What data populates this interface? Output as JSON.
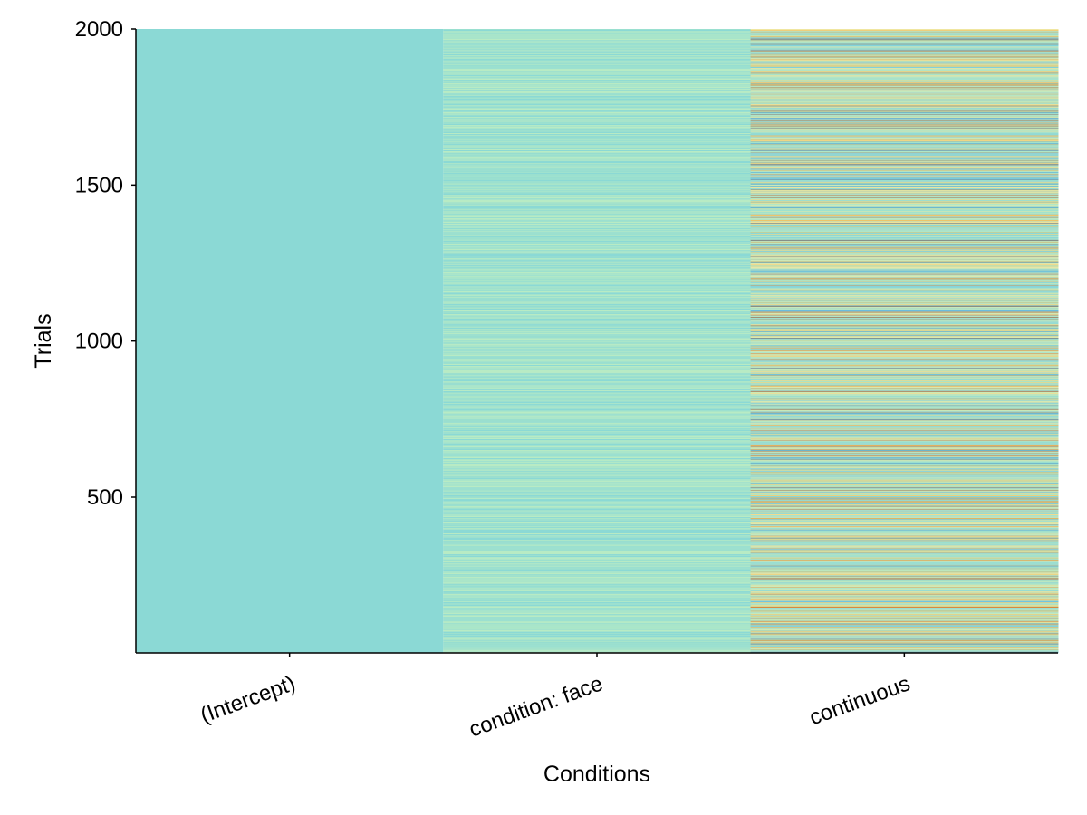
{
  "chart_data": {
    "type": "heatmap",
    "title": "",
    "xlabel": "Conditions",
    "ylabel": "Trials",
    "categories": [
      "(Intercept)",
      "condition: face",
      "continuous"
    ],
    "ylim": [
      1,
      2000
    ],
    "yticks": [
      500,
      1000,
      1500,
      2000
    ],
    "yticklabels": [
      "500",
      "1000",
      "1500",
      "2000"
    ],
    "grid": false,
    "legend": "none",
    "n_trials": 2000,
    "columns": [
      {
        "name": "(Intercept)",
        "kind": "constant",
        "value": 1
      },
      {
        "name": "condition: face",
        "kind": "binary",
        "values": [
          0,
          1
        ]
      },
      {
        "name": "continuous",
        "kind": "continuous",
        "range": [
          -5,
          1
        ]
      }
    ],
    "colormap": [
      "#1b2a6b",
      "#2b6cb0",
      "#6ec6e8",
      "#8bd9d5",
      "#b8ebc4",
      "#f2e6a0",
      "#f0b44c",
      "#c0511a",
      "#6b1d0c"
    ],
    "constant_color": "#8bd9d5",
    "binary_colors": [
      "#8bd9d5",
      "#b8ebc4"
    ]
  }
}
